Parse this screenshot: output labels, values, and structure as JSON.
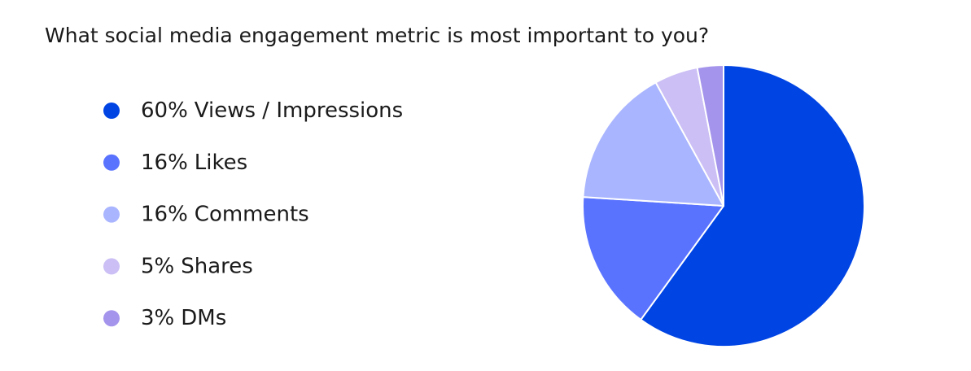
{
  "chart_data": {
    "type": "pie",
    "title": "What social media engagement metric is most important to you?",
    "categories": [
      "Views / Impressions",
      "Likes",
      "Comments",
      "Shares",
      "DMs"
    ],
    "values": [
      60,
      16,
      16,
      5,
      3
    ],
    "value_labels": [
      "60%",
      "16%",
      "16%",
      "5%",
      "3%"
    ],
    "colors": [
      "#0044e4",
      "#5a73ff",
      "#a9b5ff",
      "#cbbff5",
      "#a594ec"
    ]
  }
}
